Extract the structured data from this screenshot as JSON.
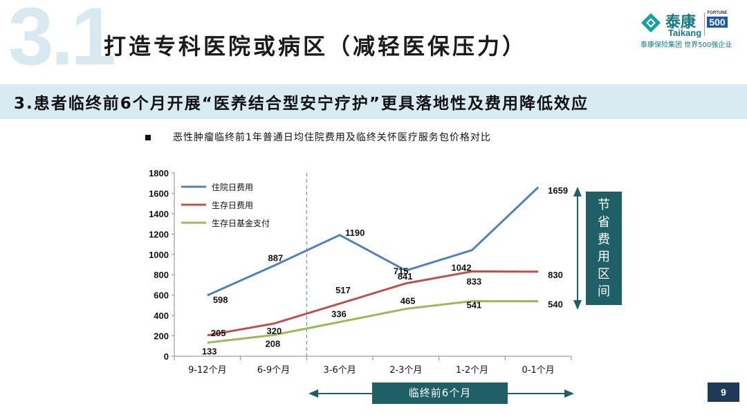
{
  "header": {
    "section_number": "3.1",
    "title": "打造专科医院或病区（减轻医保压力）",
    "logo": {
      "cn": "泰康",
      "en": "Taikang",
      "fortune_label": "FORTUNE",
      "fortune_number": "500",
      "tagline": "泰康保险集团 世界500强企业"
    }
  },
  "subtitle": "3.患者临终前6个月开展“医养结合型安宁疗护”更具落地性及费用降低效应",
  "chart_heading": "恶性肿瘤临终前1年普通日均住院费用及临终关怀医疗服务包价格对比",
  "chart_data": {
    "type": "line",
    "categories": [
      "9-12个月",
      "6-9个月",
      "3-6个月",
      "2-3个月",
      "1-2个月",
      "0-1个月"
    ],
    "series": [
      {
        "name": "住院日费用",
        "color": "#4f81bd",
        "values": [
          598,
          887,
          1190,
          841,
          1042,
          1659
        ]
      },
      {
        "name": "生存日费用",
        "color": "#c0504d",
        "values": [
          205,
          320,
          517,
          715,
          833,
          830
        ]
      },
      {
        "name": "生存日基金支付",
        "color": "#9bbb59",
        "values": [
          133,
          208,
          336,
          465,
          541,
          540
        ]
      }
    ],
    "ylim": [
      0,
      1800
    ],
    "yticks": [
      0,
      200,
      400,
      600,
      800,
      1000,
      1200,
      1400,
      1600,
      1800
    ],
    "legend_position": "top-left",
    "divider_after_category": "6-9个月"
  },
  "side_annotation": [
    "节",
    "省",
    "费",
    "用",
    "区",
    "间"
  ],
  "bottom_annotation": "临终前6个月",
  "page_number": "9",
  "colors": {
    "accent": "#1f5f66",
    "subtitle_band": "#d8ebf2",
    "page_badge": "#1f3a58"
  }
}
